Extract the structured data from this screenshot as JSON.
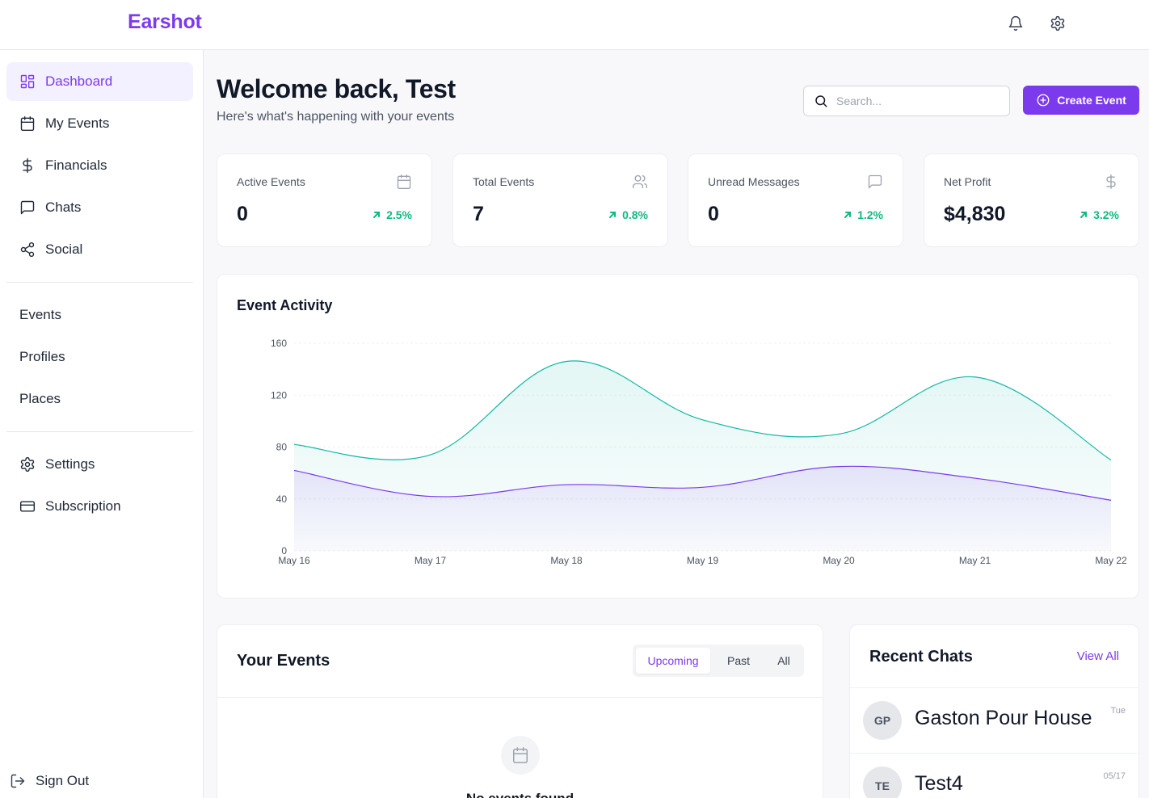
{
  "app": {
    "brand": "Earshot"
  },
  "header": {
    "icons": [
      "bell-icon",
      "gear-icon"
    ]
  },
  "sidebar": {
    "main": [
      {
        "label": "Dashboard",
        "icon": "dashboard-grid-icon",
        "active": true
      },
      {
        "label": "My Events",
        "icon": "calendar-icon"
      },
      {
        "label": "Financials",
        "icon": "dollar-icon"
      },
      {
        "label": "Chats",
        "icon": "chat-bubble-icon"
      },
      {
        "label": "Social",
        "icon": "share-icon"
      }
    ],
    "secondary": [
      {
        "label": "Events"
      },
      {
        "label": "Profiles"
      },
      {
        "label": "Places"
      }
    ],
    "account": [
      {
        "label": "Settings",
        "icon": "gear-icon"
      },
      {
        "label": "Subscription",
        "icon": "credit-card-icon"
      }
    ],
    "sign_out": "Sign Out"
  },
  "main": {
    "welcome": "Welcome back, Test",
    "subtitle": "Here's what's happening with your events",
    "search_placeholder": "Search...",
    "create_label": "Create Event"
  },
  "stats": [
    {
      "label": "Active Events",
      "value": "0",
      "change": "2.5%",
      "icon": "calendar-icon"
    },
    {
      "label": "Total Events",
      "value": "7",
      "change": "0.8%",
      "icon": "users-icon"
    },
    {
      "label": "Unread Messages",
      "value": "0",
      "change": "1.2%",
      "icon": "message-icon"
    },
    {
      "label": "Net Profit",
      "value": "$4,830",
      "change": "3.2%",
      "icon": "dollar-icon"
    }
  ],
  "colors": {
    "accent": "#7c3aed",
    "positive": "#10b981",
    "teal_series": "#14b8a6",
    "purple_series": "#7c3aed"
  },
  "chart_data": {
    "type": "area",
    "title": "Event Activity",
    "x": [
      "May 16",
      "May 17",
      "May 18",
      "May 19",
      "May 20",
      "May 21",
      "May 22"
    ],
    "y_ticks": [
      0,
      40,
      80,
      120,
      160
    ],
    "ylim": [
      0,
      160
    ],
    "grid": true,
    "series": [
      {
        "values": [
          82,
          74,
          146,
          101,
          90,
          134,
          70
        ],
        "color": "#14b8a6"
      },
      {
        "values": [
          62,
          42,
          51,
          49,
          65,
          56,
          39
        ],
        "color": "#7c3aed"
      }
    ]
  },
  "events_panel": {
    "title": "Your Events",
    "tabs": [
      {
        "label": "Upcoming",
        "active": true
      },
      {
        "label": "Past"
      },
      {
        "label": "All"
      }
    ],
    "empty_text": "No events found"
  },
  "chats_panel": {
    "title": "Recent Chats",
    "view_all": "View All",
    "items": [
      {
        "initials": "GP",
        "name": "Gaston Pour House",
        "time": "Tue"
      },
      {
        "initials": "TE",
        "name": "Test4",
        "time": "05/17"
      }
    ]
  }
}
